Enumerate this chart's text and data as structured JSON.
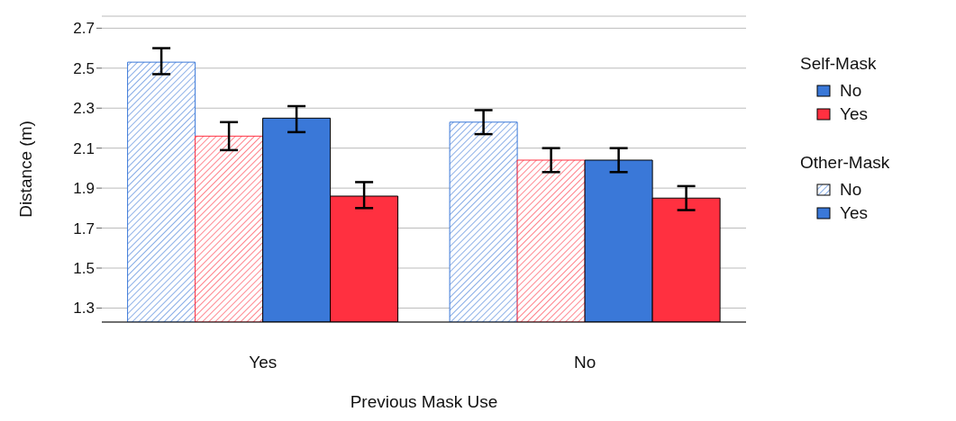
{
  "chart_data": {
    "type": "bar",
    "xlabel": "Previous Mask Use",
    "ylabel": "Distance (m)",
    "categories": [
      "Yes",
      "No"
    ],
    "series": [
      {
        "color": "#3a78d8",
        "values": [
          2.53,
          2.23
        ],
        "errors": [
          [
            2.47,
            2.6
          ],
          [
            2.17,
            2.29
          ]
        ]
      },
      {
        "color": "#ff3040",
        "values": [
          2.16,
          2.04
        ],
        "errors": [
          [
            2.09,
            2.23
          ],
          [
            1.98,
            2.1
          ]
        ]
      },
      {
        "color": "#3a78d8",
        "values": [
          2.25,
          2.04
        ],
        "errors": [
          [
            2.18,
            2.31
          ],
          [
            1.98,
            2.1
          ]
        ]
      },
      {
        "color": "#ff3040",
        "values": [
          1.86,
          1.85
        ],
        "errors": [
          [
            1.8,
            1.93
          ],
          [
            1.79,
            1.91
          ]
        ]
      }
    ],
    "ylim": [
      1.23,
      2.76
    ],
    "yticks": [
      1.3,
      1.5,
      1.7,
      1.9,
      2.1,
      2.3,
      2.5,
      2.7
    ],
    "grid": "y",
    "annotations": [
      "Self-Mask",
      "No",
      "Yes",
      "Other-Mask",
      "No",
      "Yes"
    ]
  }
}
